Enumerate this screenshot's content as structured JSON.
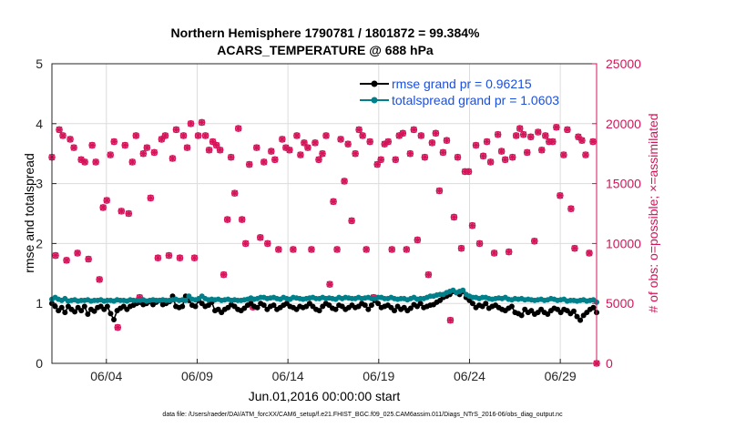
{
  "chart_data": {
    "type": "line",
    "title": [
      "Northern Hemisphere 1790781 / 1801872 = 99.384%",
      "ACARS_TEMPERATURE @ 688 hPa"
    ],
    "xlabel": "Jun.01,2016 00:00:00 start",
    "ylabel_left": "rmse and totalspread",
    "ylabel_right": "# of obs: o=possible; ×=assimilated",
    "footnote": "data file: /Users/raeder/DAI/ATM_forcXX/CAM6_setup/f.e21.FHIST_BGC.f09_025.CAM6assim.011/Diags_NTrS_2016-06/obs_diag_output.nc",
    "x_range_days": [
      0,
      30
    ],
    "x_ticks": [
      {
        "day": 3,
        "label": "06/04"
      },
      {
        "day": 8,
        "label": "06/09"
      },
      {
        "day": 13,
        "label": "06/14"
      },
      {
        "day": 18,
        "label": "06/19"
      },
      {
        "day": 23,
        "label": "06/24"
      },
      {
        "day": 28,
        "label": "06/29"
      }
    ],
    "ylim_left": [
      0,
      5
    ],
    "yticks_left": [
      "0",
      "1",
      "2",
      "3",
      "4",
      "5"
    ],
    "ylim_right": [
      0,
      25000
    ],
    "yticks_right": [
      "0",
      "5000",
      "10000",
      "15000",
      "20000",
      "25000"
    ],
    "colors": {
      "rmse": "#000000",
      "spread": "#00808a",
      "obs": "#d4145a",
      "right_axis": "#d4145a",
      "legend_text": "#1a4fe0"
    },
    "series": [
      {
        "name": "rmse",
        "legend": "rmse grand pr = 0.96215",
        "values": [
          1.0,
          0.95,
          0.88,
          0.93,
          0.85,
          0.95,
          0.9,
          0.86,
          0.93,
          0.88,
          0.95,
          0.82,
          0.9,
          0.87,
          0.93,
          0.95,
          0.9,
          0.95,
          0.83,
          0.73,
          0.88,
          0.92,
          0.95,
          0.9,
          0.95,
          0.97,
          1.0,
          1.02,
          0.98,
          1.0,
          1.03,
          0.98,
          1.02,
          1.05,
          0.98,
          1.0,
          1.03,
          1.12,
          0.95,
          0.93,
          0.95,
          1.12,
          1.05,
          0.97,
          0.95,
          1.05,
          1.0,
          0.95,
          0.97,
          1.02,
          0.88,
          0.9,
          0.85,
          0.9,
          0.93,
          0.98,
          0.95,
          0.9,
          0.88,
          0.92,
          0.97,
          1.0,
          0.95,
          0.93,
          1.0,
          0.97,
          0.9,
          0.95,
          0.97,
          0.9,
          0.93,
          0.97,
          1.0,
          0.95,
          0.93,
          0.9,
          0.95,
          0.93,
          0.95,
          1.0,
          0.95,
          0.9,
          0.88,
          0.95,
          1.0,
          0.97,
          0.92,
          0.9,
          0.97,
          0.95,
          0.9,
          0.93,
          0.97,
          0.93,
          0.95,
          1.0,
          0.97,
          0.9,
          0.97,
          1.05,
          1.0,
          0.93,
          0.95,
          0.97,
          0.93,
          0.88,
          0.95,
          0.9,
          0.93,
          0.88,
          0.92,
          0.98,
          0.95,
          1.0,
          0.93,
          0.95,
          0.97,
          0.98,
          1.02,
          1.05,
          1.1,
          1.12,
          1.15,
          1.2,
          1.18,
          1.15,
          1.2,
          1.1,
          1.05,
          1.0,
          0.93,
          0.97,
          0.95,
          1.0,
          0.92,
          0.95,
          0.97,
          0.93,
          0.9,
          0.88,
          0.92,
          0.95,
          0.85,
          0.83,
          0.8,
          0.9,
          0.85,
          0.88,
          0.82,
          0.85,
          0.9,
          0.85,
          0.82,
          0.88,
          0.92,
          0.9,
          0.85,
          0.9,
          0.88,
          0.83,
          0.87,
          0.78,
          0.72,
          0.8,
          0.85,
          0.9,
          0.93,
          0.85
        ]
      },
      {
        "name": "totalspread",
        "legend": "totalspread grand pr = 1.0603",
        "values": [
          1.07,
          1.1,
          1.07,
          1.05,
          1.08,
          1.04,
          1.05,
          1.06,
          1.04,
          1.05,
          1.05,
          1.06,
          1.04,
          1.05,
          1.05,
          1.06,
          1.04,
          1.05,
          1.05,
          1.04,
          1.06,
          1.05,
          1.05,
          1.04,
          1.06,
          1.05,
          1.05,
          1.05,
          1.06,
          1.04,
          1.05,
          1.06,
          1.05,
          1.05,
          1.06,
          1.05,
          1.05,
          1.06,
          1.07,
          1.05,
          1.06,
          1.05,
          1.12,
          1.07,
          1.06,
          1.08,
          1.12,
          1.08,
          1.06,
          1.07,
          1.06,
          1.07,
          1.05,
          1.06,
          1.07,
          1.05,
          1.06,
          1.05,
          1.05,
          1.06,
          1.07,
          1.09,
          1.07,
          1.08,
          1.1,
          1.1,
          1.08,
          1.09,
          1.1,
          1.08,
          1.07,
          1.1,
          1.08,
          1.07,
          1.1,
          1.09,
          1.08,
          1.07,
          1.08,
          1.09,
          1.1,
          1.08,
          1.08,
          1.1,
          1.08,
          1.09,
          1.08,
          1.07,
          1.1,
          1.08,
          1.1,
          1.09,
          1.08,
          1.08,
          1.1,
          1.08,
          1.09,
          1.1,
          1.08,
          1.08,
          1.1,
          1.1,
          1.08,
          1.08,
          1.1,
          1.08,
          1.07,
          1.08,
          1.08,
          1.06,
          1.08,
          1.1,
          1.07,
          1.08,
          1.08,
          1.1,
          1.12,
          1.12,
          1.14,
          1.15,
          1.15,
          1.18,
          1.2,
          1.22,
          1.18,
          1.2,
          1.22,
          1.15,
          1.12,
          1.1,
          1.1,
          1.08,
          1.1,
          1.1,
          1.08,
          1.07,
          1.08,
          1.09,
          1.08,
          1.1,
          1.07,
          1.06,
          1.08,
          1.07,
          1.08,
          1.06,
          1.07,
          1.06,
          1.05,
          1.06,
          1.07,
          1.05,
          1.06,
          1.08,
          1.07,
          1.05,
          1.06,
          1.07,
          1.04,
          1.05,
          1.05,
          1.04,
          1.05,
          1.06,
          1.04,
          1.05,
          1.06,
          1.02
        ]
      },
      {
        "name": "obs_possible",
        "values": [
          17200,
          9000,
          19500,
          19000,
          8600,
          18700,
          18000,
          9200,
          17000,
          16800,
          8700,
          18200,
          16800,
          7000,
          13000,
          13600,
          17400,
          18500,
          3000,
          12700,
          18200,
          12500,
          16800,
          19000,
          5500,
          17500,
          18000,
          13800,
          17600,
          8800,
          18700,
          19000,
          9000,
          17100,
          19500,
          8800,
          19000,
          18000,
          20000,
          8800,
          19000,
          20100,
          19000,
          17800,
          18500,
          18200,
          17800,
          7400,
          12000,
          17200,
          14200,
          19600,
          12000,
          10000,
          16600,
          4700,
          18000,
          10500,
          16800,
          10000,
          17700,
          17000,
          9500,
          18700,
          18000,
          17800,
          9500,
          19000,
          17400,
          18400,
          18000,
          9500,
          18400,
          17000,
          17500,
          19000,
          6600,
          13500,
          9500,
          18700,
          15200,
          18300,
          11900,
          17500,
          19500,
          19000,
          9500,
          18500,
          5500,
          16600,
          17000,
          18300,
          18500,
          9500,
          17000,
          19000,
          19200,
          9500,
          17500,
          19500,
          10300,
          19000,
          17200,
          7400,
          18400,
          19200,
          14400,
          17600,
          18600,
          3600,
          12200,
          17200,
          9600,
          16000,
          16000,
          11500,
          18200,
          10000,
          17300,
          18500,
          16800,
          9200,
          19100,
          17700,
          17000,
          9300,
          17200,
          19000,
          19600,
          19100,
          17600,
          18900,
          10200,
          19300,
          17800,
          19000,
          18500,
          18500,
          19700,
          14000,
          17400,
          19500,
          12900,
          9600,
          18900,
          18600,
          17400,
          9200,
          18500,
          0
        ]
      },
      {
        "name": "obs_assimilated",
        "values": [
          17200,
          9000,
          19500,
          19000,
          8600,
          18700,
          18000,
          9200,
          17000,
          16800,
          8700,
          18200,
          16800,
          7000,
          13000,
          13600,
          17400,
          18500,
          3000,
          12700,
          18200,
          12500,
          16800,
          19000,
          5500,
          17500,
          18000,
          13800,
          17600,
          8800,
          18700,
          19000,
          9000,
          17100,
          19500,
          8800,
          19000,
          18000,
          20000,
          8800,
          19000,
          20100,
          19000,
          17800,
          18500,
          18200,
          17800,
          7400,
          12000,
          17200,
          14200,
          19600,
          12000,
          10000,
          16600,
          4700,
          18000,
          10500,
          16800,
          10000,
          17700,
          17000,
          9500,
          18700,
          18000,
          17800,
          9500,
          19000,
          17400,
          18400,
          18000,
          9500,
          18400,
          17000,
          17500,
          19000,
          6600,
          13500,
          9500,
          18700,
          15200,
          18300,
          11900,
          17500,
          19500,
          19000,
          9500,
          18500,
          5500,
          16600,
          17000,
          18300,
          18500,
          9500,
          17000,
          19000,
          19200,
          9500,
          17500,
          19500,
          10300,
          19000,
          17200,
          7400,
          18400,
          19200,
          14400,
          17600,
          18600,
          3600,
          12200,
          17200,
          9600,
          16000,
          16000,
          11500,
          18200,
          10000,
          17300,
          18500,
          16800,
          9200,
          19100,
          17700,
          17000,
          9300,
          17200,
          19000,
          19600,
          19100,
          17600,
          18900,
          10200,
          19300,
          17800,
          19000,
          18500,
          18500,
          19700,
          14000,
          17400,
          19500,
          12900,
          9600,
          18900,
          18600,
          17400,
          9200,
          18500,
          0
        ]
      }
    ]
  }
}
